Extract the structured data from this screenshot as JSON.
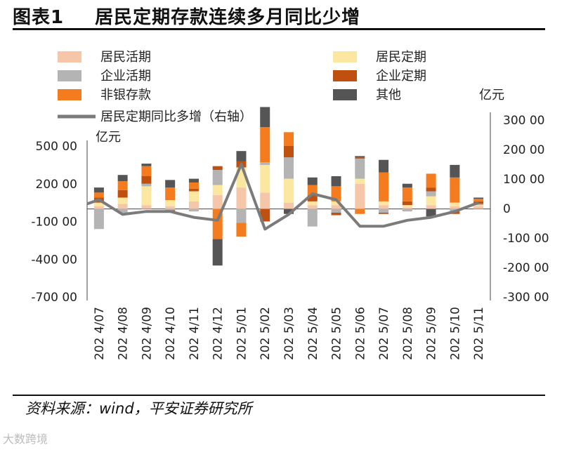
{
  "title": {
    "label": "图表1",
    "text": "居民定期存款连续多月同比少增"
  },
  "source": "资料来源：wind，平安证券研究所",
  "watermark": "大数跨境",
  "colors": {
    "居民活期": "#f6c6a8",
    "居民定期": "#fce7a0",
    "企业活期": "#b4b4b4",
    "企业定期": "#c0500f",
    "非银存款": "#f57c1e",
    "其他": "#555555",
    "line": "#7b7b7b"
  },
  "chart_data": {
    "type": "bar",
    "stacked": true,
    "left_unit": "亿元",
    "right_unit": "亿元",
    "left_ticks": [
      "500 00",
      "200 00",
      "-100 00",
      "-400 00",
      "-700 00"
    ],
    "left_tick_values": [
      50000,
      20000,
      -10000,
      -40000,
      -70000
    ],
    "right_ticks": [
      "300 00",
      "200 00",
      "100 00",
      "0",
      "-100 00",
      "-200 00",
      "-300 00"
    ],
    "right_tick_values": [
      30000,
      20000,
      10000,
      0,
      -10000,
      -20000,
      -30000
    ],
    "ylim_left": [
      -70000,
      50000
    ],
    "ylim_right": [
      -30000,
      30000
    ],
    "categories": [
      "2024/07",
      "2024/08",
      "2024/09",
      "2024/10",
      "2024/11",
      "2024/12",
      "2025/01",
      "2025/02",
      "2025/03",
      "2025/04",
      "2025/05",
      "2025/06",
      "2025/07",
      "2025/08",
      "2025/09",
      "2025/10",
      "2025/11"
    ],
    "category_labels": [
      "202 4/07",
      "202 4/08",
      "202 4/09",
      "202 4/10",
      "202 4/11",
      "202 4/12",
      "202 5/01",
      "202 5/02",
      "202 5/03",
      "202 5/04",
      "202 5/05",
      "202 5/06",
      "202 5/07",
      "202 5/08",
      "202 5/09",
      "202 5/10",
      "202 5/11"
    ],
    "legend_position": "top",
    "series": [
      {
        "name": "居民活期",
        "values": [
          2000,
          4000,
          3000,
          2000,
          6000,
          11000,
          17000,
          13000,
          5000,
          3000,
          3000,
          20000,
          3000,
          1000,
          3000,
          2000,
          2000
        ]
      },
      {
        "name": "居民定期",
        "values": [
          3000,
          5000,
          15000,
          5000,
          8000,
          8000,
          16000,
          22000,
          19000,
          3000,
          3000,
          4000,
          3000,
          2000,
          7000,
          3000,
          1000
        ]
      },
      {
        "name": "企业活期",
        "values": [
          -16000,
          -3000,
          2000,
          -1000,
          -2000,
          12000,
          -11000,
          2000,
          17000,
          -14000,
          -3000,
          16000,
          -3000,
          -2000,
          4000,
          -2000,
          1000
        ]
      },
      {
        "name": "企业定期",
        "values": [
          4000,
          6000,
          6000,
          -2000,
          2000,
          3000,
          5000,
          -10000,
          9000,
          5000,
          -2000,
          1000,
          -1000,
          3000,
          3000,
          -2000,
          2000
        ]
      },
      {
        "name": "非银存款",
        "values": [
          4000,
          7000,
          8000,
          10000,
          5000,
          -24000,
          -11000,
          28000,
          11000,
          8000,
          12000,
          -4000,
          23000,
          11000,
          11000,
          20000,
          2000
        ]
      },
      {
        "name": "其他",
        "values": [
          4000,
          5000,
          2000,
          6000,
          3000,
          -21000,
          8000,
          16000,
          -4000,
          6000,
          8000,
          1000,
          10000,
          3000,
          -6000,
          10000,
          1000
        ]
      }
    ],
    "line": {
      "name": "居民定期同比多增（右轴）",
      "values": [
        3000,
        -2000,
        -1000,
        -1000,
        -3000,
        -4000,
        15000,
        -7000,
        -2000,
        5000,
        3000,
        -6000,
        -6000,
        -4000,
        -3000,
        -1000,
        2000
      ]
    }
  }
}
